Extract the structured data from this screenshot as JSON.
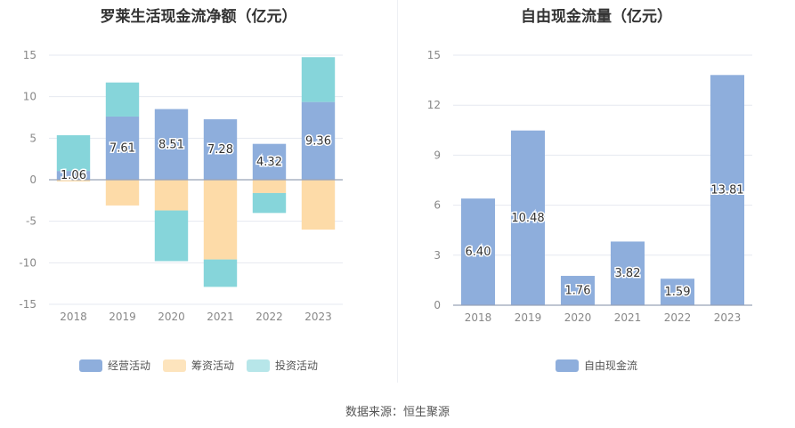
{
  "chart_data": [
    {
      "type": "bar",
      "title": "罗莱生活现金流净额（亿元）",
      "categories": [
        "2018",
        "2019",
        "2020",
        "2021",
        "2022",
        "2023"
      ],
      "stacked": true,
      "ylim": [
        -15,
        15
      ],
      "yticks": [
        15,
        10,
        5,
        0,
        -5,
        -10,
        -15
      ],
      "grid": true,
      "legend_position": "bottom",
      "series": [
        {
          "name": "经营活动",
          "color": "#8eaedc",
          "values": [
            1.06,
            7.61,
            8.51,
            7.28,
            4.32,
            9.36
          ],
          "labels": [
            "1.06",
            "7.61",
            "8.51",
            "7.28",
            "4.32",
            "9.36"
          ]
        },
        {
          "name": "筹资活动",
          "color": "#fddba8",
          "values": [
            -0.2,
            -3.1,
            -3.7,
            -9.6,
            -1.6,
            -6.0
          ]
        },
        {
          "name": "投资活动",
          "color": "#86d5da",
          "values": [
            4.3,
            4.1,
            -6.1,
            -3.3,
            -2.4,
            5.4
          ]
        }
      ]
    },
    {
      "type": "bar",
      "title": "自由现金流量（亿元）",
      "categories": [
        "2018",
        "2019",
        "2020",
        "2021",
        "2022",
        "2023"
      ],
      "ylim": [
        0,
        15
      ],
      "yticks": [
        15,
        12,
        9,
        6,
        3,
        0
      ],
      "grid": true,
      "legend_position": "bottom",
      "series": [
        {
          "name": "自由现金流",
          "color": "#8eaedc",
          "values": [
            6.4,
            10.48,
            1.76,
            3.82,
            1.59,
            13.81
          ],
          "labels": [
            "6.40",
            "10.48",
            "1.76",
            "3.82",
            "1.59",
            "13.81"
          ]
        }
      ]
    }
  ],
  "source_text": "数据来源：恒生聚源"
}
